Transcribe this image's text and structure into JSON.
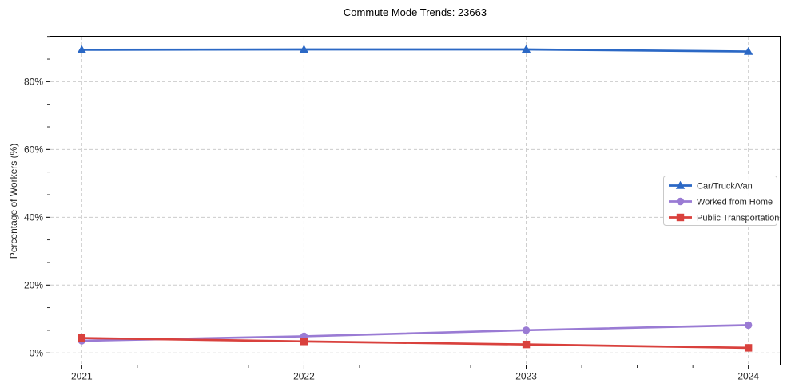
{
  "chart_data": {
    "type": "line",
    "title": "Commute Mode Trends: 23663",
    "xlabel": "",
    "ylabel": "Percentage of Workers (%)",
    "categories": [
      "2021",
      "2022",
      "2023",
      "2024"
    ],
    "y_ticks": [
      0,
      20,
      40,
      60,
      80
    ],
    "y_tick_labels": [
      "0%",
      "20%",
      "40%",
      "60%",
      "80%"
    ],
    "ylim": [
      -3.7,
      93.5
    ],
    "xlim": [
      -0.145,
      3.145
    ],
    "grid": {
      "visible": true,
      "style": "dashed",
      "color": "#cccccc"
    },
    "legend": {
      "position": "center-right",
      "border_color": "#c9c9c9",
      "background": "#ffffff"
    },
    "series": [
      {
        "name": "Car/Truck/Van",
        "marker": "triangle",
        "color": "#2b68c5",
        "values": [
          89.4,
          89.5,
          89.5,
          88.9
        ]
      },
      {
        "name": "Worked from Home",
        "marker": "circle",
        "color": "#9a7bd4",
        "values": [
          3.6,
          4.9,
          6.7,
          8.2
        ]
      },
      {
        "name": "Public Transportation",
        "marker": "square",
        "color": "#d9413d",
        "values": [
          4.4,
          3.4,
          2.5,
          1.5
        ]
      }
    ],
    "axis_color": "#000000",
    "tick_label_color": "#262626"
  }
}
